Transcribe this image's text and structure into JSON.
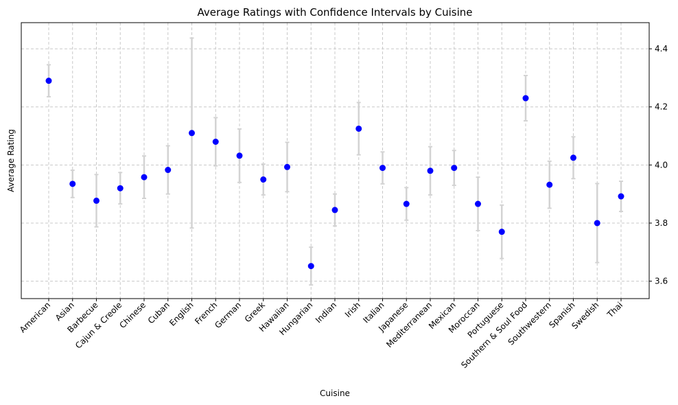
{
  "chart_data": {
    "type": "scatter",
    "title": "Average Ratings with Confidence Intervals by Cuisine",
    "xlabel": "Cuisine",
    "ylabel": "Average Rating",
    "y_axis_side": "right",
    "grid": true,
    "ylim": [
      3.54,
      4.49
    ],
    "yticks": [
      3.6,
      3.8,
      4.0,
      4.2,
      4.4
    ],
    "ytick_labels": [
      "3.6",
      "3.8",
      "4.0",
      "4.2",
      "4.4"
    ],
    "categories": [
      "American",
      "Asian",
      "Barbecue",
      "Cajun & Creole",
      "Chinese",
      "Cuban",
      "English",
      "French",
      "German",
      "Greek",
      "Hawaiian",
      "Hungarian",
      "Indian",
      "Irish",
      "Italian",
      "Japanese",
      "Mediterranean",
      "Mexican",
      "Moroccan",
      "Portuguese",
      "Southern & Soul Food",
      "Southwestern",
      "Spanish",
      "Swedish",
      "Thai"
    ],
    "values": [
      4.29,
      3.935,
      3.877,
      3.92,
      3.958,
      3.983,
      4.11,
      4.08,
      4.032,
      3.95,
      3.993,
      3.652,
      3.845,
      4.125,
      3.99,
      3.866,
      3.98,
      3.99,
      3.866,
      3.77,
      4.23,
      3.932,
      4.025,
      3.8,
      3.892
    ],
    "ci_lower": [
      4.235,
      3.888,
      3.787,
      3.866,
      3.885,
      3.9,
      3.783,
      3.997,
      3.94,
      3.897,
      3.908,
      3.587,
      3.79,
      4.035,
      3.935,
      3.81,
      3.897,
      3.93,
      3.774,
      3.678,
      4.152,
      3.851,
      3.953,
      3.664,
      3.84
    ],
    "ci_upper": [
      4.345,
      3.982,
      3.967,
      3.974,
      4.031,
      4.066,
      4.437,
      4.163,
      4.124,
      4.003,
      4.078,
      3.717,
      3.9,
      4.215,
      4.045,
      3.922,
      4.063,
      4.05,
      3.958,
      3.862,
      4.308,
      4.013,
      4.097,
      3.936,
      3.944
    ],
    "colors": {
      "points": "#0000ff",
      "error_bars": "#d3d3d3",
      "grid": "#c8c8c8"
    }
  }
}
